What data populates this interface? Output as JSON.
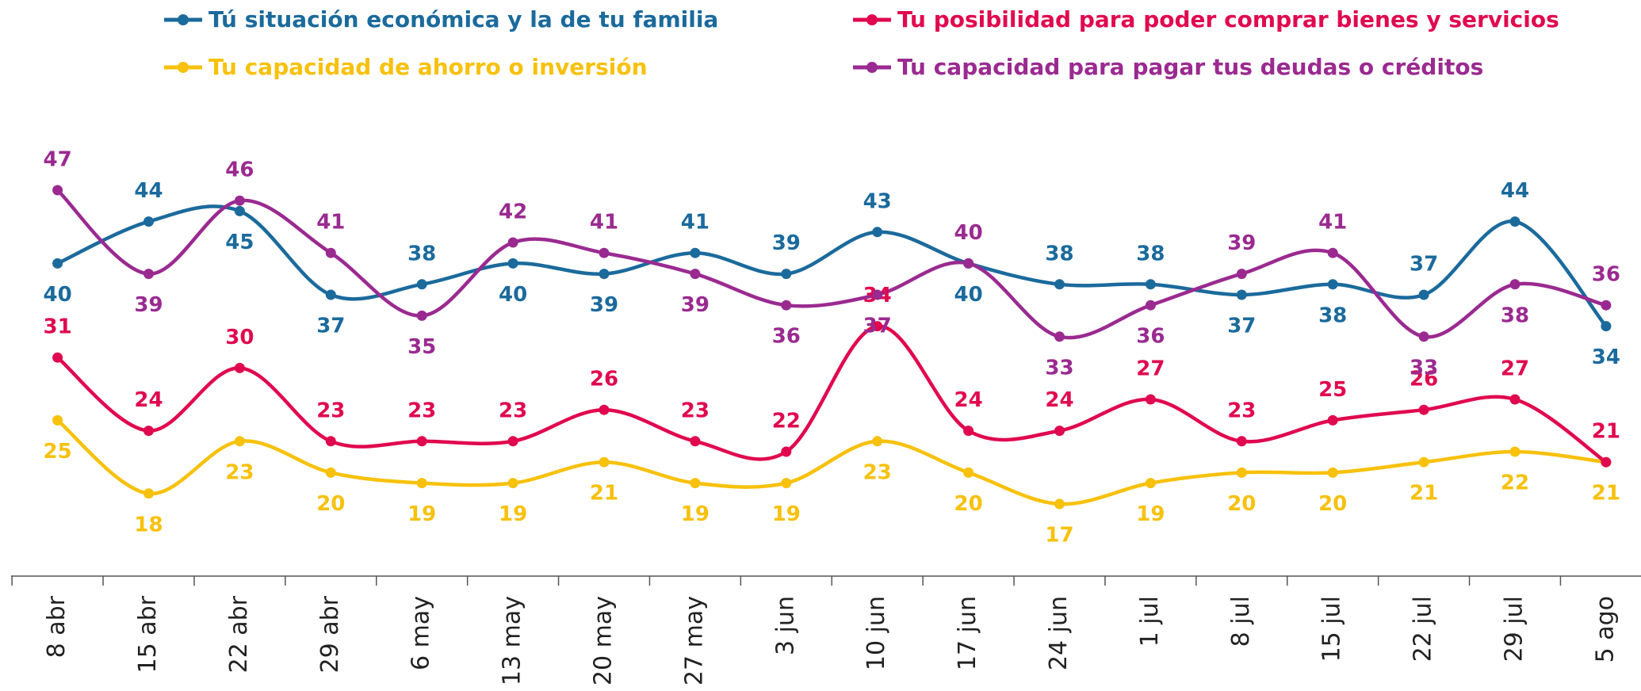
{
  "chart_data": {
    "type": "line",
    "categories": [
      "8 abr",
      "15 abr",
      "22 abr",
      "29 abr",
      "6 may",
      "13 may",
      "20 may",
      "27 may",
      "3 jun",
      "10 jun",
      "17 jun",
      "24 jun",
      "1 jul",
      "8 jul",
      "15 jul",
      "22 jul",
      "29 jul",
      "5 ago"
    ],
    "series": [
      {
        "name": "Tú situación económica y la de tu familia",
        "color": "#1b6a9c",
        "values": [
          40,
          44,
          45,
          37,
          38,
          40,
          39,
          41,
          39,
          43,
          40,
          38,
          38,
          37,
          38,
          37,
          44,
          34
        ]
      },
      {
        "name": "Tu posibilidad para poder comprar bienes y servicios",
        "color": "#e0084f",
        "values": [
          31,
          24,
          30,
          23,
          23,
          23,
          26,
          23,
          22,
          34,
          24,
          24,
          27,
          23,
          25,
          26,
          27,
          21
        ]
      },
      {
        "name": "Tu capacidad de ahorro o inversión",
        "color": "#f7c10c",
        "values": [
          25,
          18,
          23,
          20,
          19,
          19,
          21,
          19,
          19,
          23,
          20,
          17,
          19,
          20,
          20,
          21,
          22,
          21
        ]
      },
      {
        "name": "Tu capacidad para pagar tus deudas o créditos",
        "color": "#9a2a90",
        "values": [
          47,
          39,
          46,
          41,
          35,
          42,
          41,
          39,
          36,
          37,
          40,
          33,
          36,
          39,
          41,
          33,
          38,
          36
        ]
      }
    ],
    "legend": "top",
    "grid": false
  }
}
